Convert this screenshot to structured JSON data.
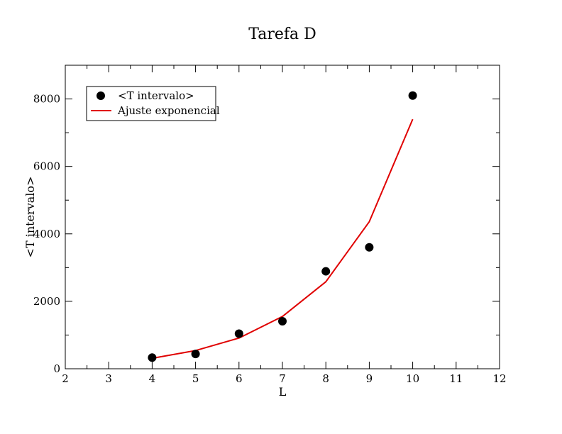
{
  "chart_data": {
    "type": "scatter",
    "title": "Tarefa D",
    "xlabel": "L",
    "ylabel": "<T intervalo>",
    "xlim": [
      2,
      12
    ],
    "ylim": [
      0,
      9000
    ],
    "x_ticks": [
      "2",
      "3",
      "4",
      "5",
      "6",
      "7",
      "8",
      "9",
      "10",
      "11",
      "12"
    ],
    "y_ticks": [
      "0",
      "2000",
      "4000",
      "6000",
      "8000"
    ],
    "grid": false,
    "legend_position": "top-left",
    "series": [
      {
        "name": "<T intervalo>",
        "kind": "scatter",
        "color": "#000000",
        "points": [
          {
            "x": 4,
            "y": 330
          },
          {
            "x": 5,
            "y": 440
          },
          {
            "x": 6,
            "y": 1040
          },
          {
            "x": 7,
            "y": 1410
          },
          {
            "x": 8,
            "y": 2890
          },
          {
            "x": 9,
            "y": 3600
          },
          {
            "x": 10,
            "y": 8100
          }
        ]
      },
      {
        "name": "Ajuste exponencial",
        "kind": "line",
        "color": "#e00000",
        "points": [
          {
            "x": 4,
            "y": 310
          },
          {
            "x": 5,
            "y": 540
          },
          {
            "x": 6,
            "y": 910
          },
          {
            "x": 7,
            "y": 1550
          },
          {
            "x": 8,
            "y": 2580
          },
          {
            "x": 9,
            "y": 4360
          },
          {
            "x": 10,
            "y": 7400
          }
        ]
      }
    ]
  }
}
